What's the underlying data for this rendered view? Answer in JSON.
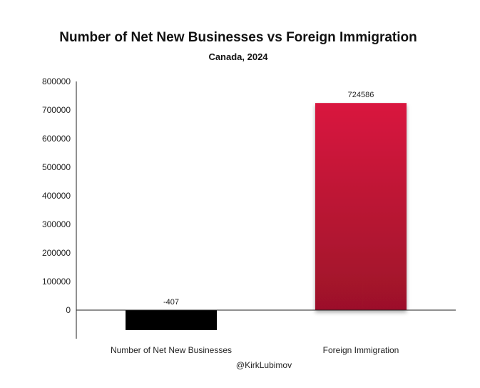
{
  "chart_data": {
    "type": "bar",
    "title": "Number of Net New Businesses vs Foreign Immigration",
    "subtitle": "Canada, 2024",
    "categories": [
      "Number of Net New Businesses",
      "Foreign Immigration"
    ],
    "values": [
      -407,
      724586
    ],
    "data_labels": [
      "-407",
      "724586"
    ],
    "bar_colors": [
      "#000000",
      "#d0173a"
    ],
    "yticks": [
      0,
      100000,
      200000,
      300000,
      400000,
      500000,
      600000,
      700000,
      800000
    ],
    "ylim": [
      -70000,
      800000
    ],
    "xlabel": "",
    "ylabel": "",
    "grid": false,
    "legend": "none"
  },
  "credit": "@KirkLubimov"
}
